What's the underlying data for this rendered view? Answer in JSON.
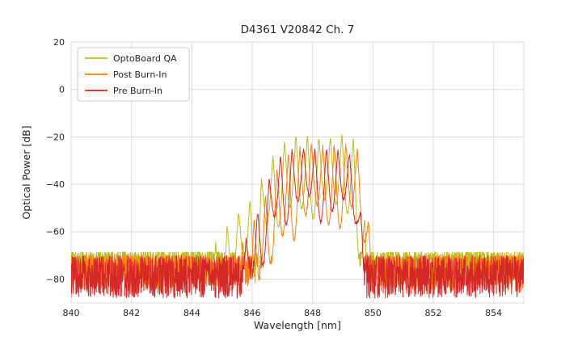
{
  "chart_data": {
    "type": "line",
    "title": "D4361 V20842 Ch. 7",
    "xlabel": "Wavelength [nm]",
    "ylabel": "Optical Power [dB]",
    "xlim": [
      840,
      855
    ],
    "ylim": [
      -90,
      20
    ],
    "xticks": [
      840,
      842,
      844,
      846,
      848,
      850,
      852,
      854
    ],
    "xtick_labels": [
      "840",
      "842",
      "844",
      "846",
      "848",
      "850",
      "852",
      "854"
    ],
    "yticks": [
      20,
      0,
      -20,
      -40,
      -60,
      -80
    ],
    "ytick_labels": [
      "20",
      "0",
      "−20",
      "−40",
      "−60",
      "−80"
    ],
    "grid": true,
    "grid_color": "#dcdcdc",
    "background": "#ffffff",
    "text_color": "#262626",
    "legend_position": "upper left",
    "legend_labels": [
      "OptoBoard QA",
      "Post Burn-In",
      "Pre Burn-In"
    ],
    "series": [
      {
        "name": "OptoBoard QA",
        "color": "#bcbd22",
        "peak_power_db": -19,
        "noise_floor": {
          "top": -68.5,
          "bottom": -82
        },
        "noise_bias": 1.9,
        "mode_start": 845.55,
        "mode_spacing": 0.38,
        "valley_depth": 32,
        "envelope": [
          [
            844.55,
            -69
          ],
          [
            845.0,
            -61
          ],
          [
            845.35,
            -54
          ],
          [
            845.75,
            -50
          ],
          [
            846.05,
            -45
          ],
          [
            846.35,
            -37
          ],
          [
            846.65,
            -29
          ],
          [
            846.95,
            -23.5
          ],
          [
            847.25,
            -20
          ],
          [
            847.6,
            -19
          ],
          [
            848.0,
            -20
          ],
          [
            848.35,
            -21
          ],
          [
            848.7,
            -20
          ],
          [
            849.0,
            -19.2
          ],
          [
            849.25,
            -19.5
          ],
          [
            849.45,
            -23
          ],
          [
            849.6,
            -38
          ],
          [
            849.75,
            -58
          ],
          [
            849.9,
            -69
          ]
        ]
      },
      {
        "name": "Post Burn-In",
        "color": "#ff7f0e",
        "peak_power_db": -23,
        "noise_floor": {
          "top": -70,
          "bottom": -85
        },
        "noise_bias": 1.5,
        "mode_start": 845.68,
        "mode_spacing": 0.38,
        "valley_depth": 30,
        "envelope": [
          [
            845.35,
            -70
          ],
          [
            845.85,
            -60
          ],
          [
            846.25,
            -51
          ],
          [
            846.6,
            -40
          ],
          [
            846.95,
            -30.5
          ],
          [
            847.3,
            -26
          ],
          [
            847.65,
            -24
          ],
          [
            848.0,
            -23.5
          ],
          [
            848.35,
            -24
          ],
          [
            848.7,
            -23.2
          ],
          [
            849.05,
            -23
          ],
          [
            849.35,
            -23.8
          ],
          [
            849.55,
            -26
          ],
          [
            849.7,
            -34
          ],
          [
            849.85,
            -55
          ],
          [
            850.0,
            -70
          ]
        ]
      },
      {
        "name": "Pre Burn-In",
        "color": "#d62728",
        "peak_power_db": -25,
        "noise_floor": {
          "top": -70,
          "bottom": -88
        },
        "noise_bias": 1.15,
        "mode_start": 845.8,
        "mode_spacing": 0.38,
        "valley_depth": 27,
        "envelope": [
          [
            845.55,
            -70
          ],
          [
            846.0,
            -58
          ],
          [
            846.35,
            -46
          ],
          [
            846.7,
            -33
          ],
          [
            847.0,
            -27.5
          ],
          [
            847.35,
            -25.5
          ],
          [
            847.7,
            -25
          ],
          [
            848.05,
            -25.3
          ],
          [
            848.4,
            -25
          ],
          [
            848.75,
            -25.5
          ],
          [
            849.05,
            -26
          ],
          [
            849.3,
            -28
          ],
          [
            849.45,
            -34
          ],
          [
            849.6,
            -52
          ],
          [
            849.75,
            -70
          ]
        ]
      }
    ]
  }
}
